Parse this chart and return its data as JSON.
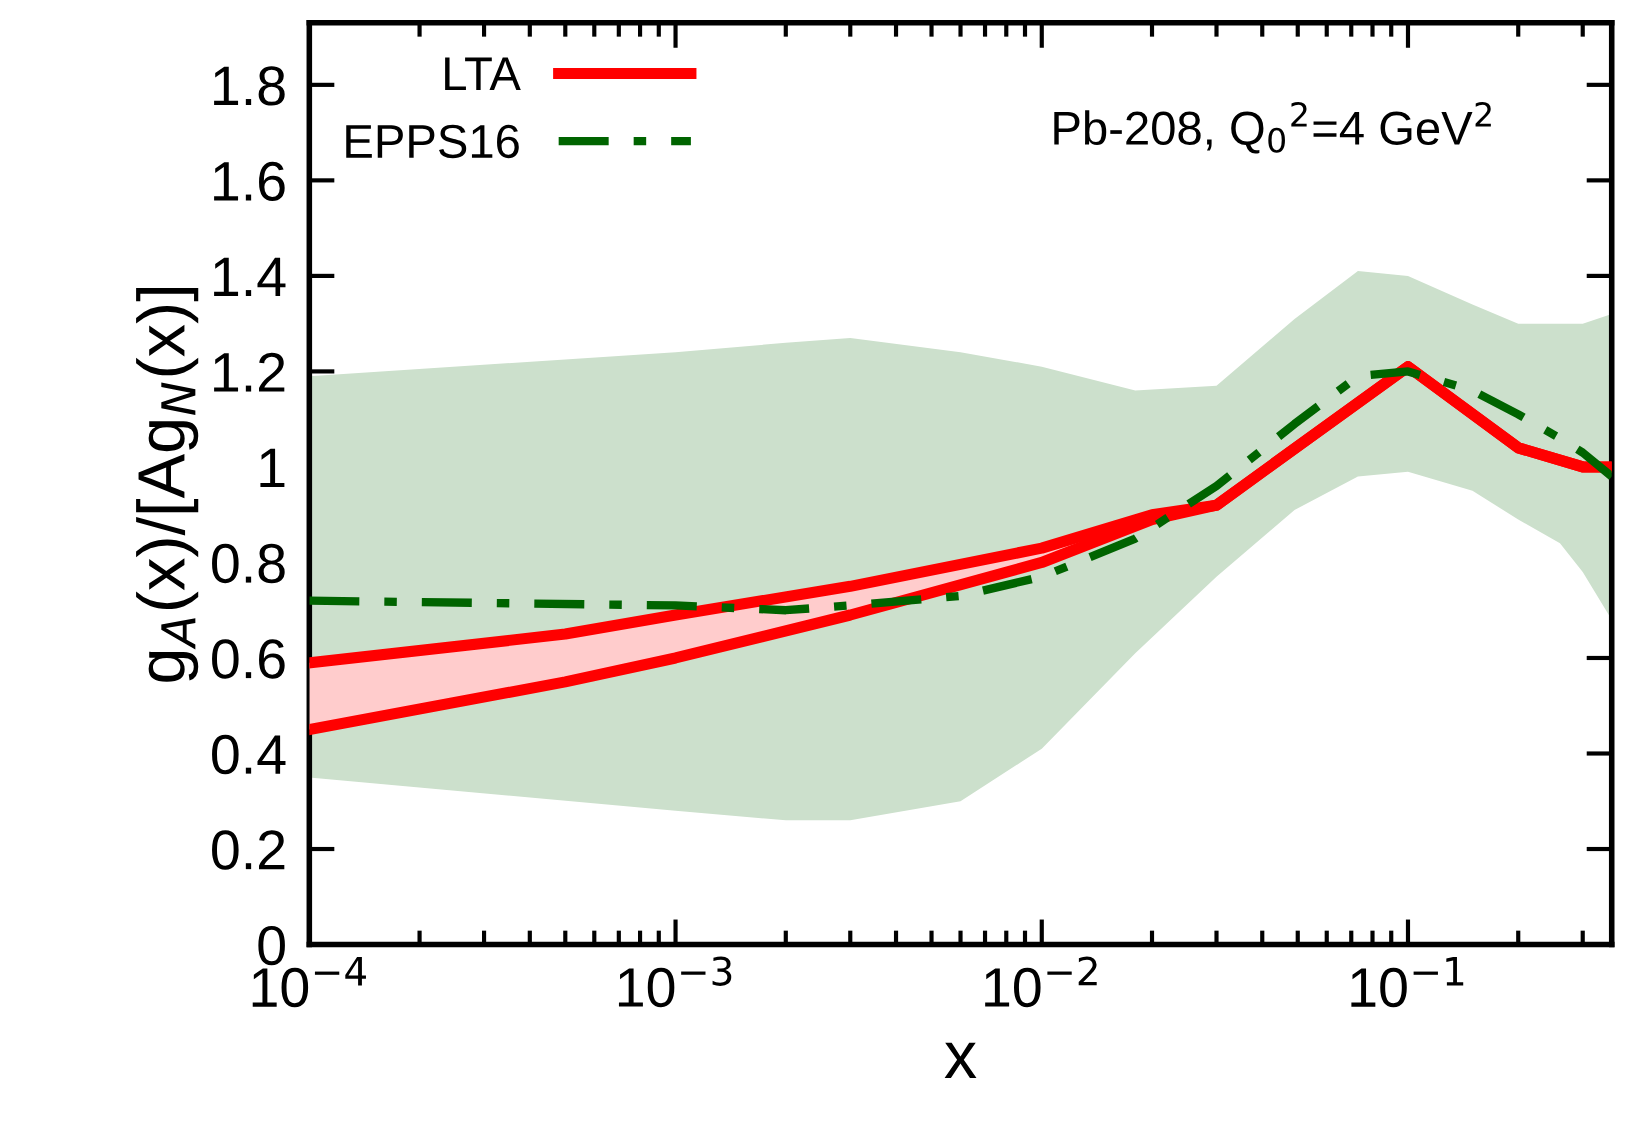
{
  "chart_data": {
    "type": "line",
    "xlabel": "x",
    "ylabel": "g$_{A}$(x)/[Ag$_{N}$(x)]",
    "annotations": [
      "Pb-208, Q$_{0}$$^{2}$=4 GeV$^{2}$"
    ],
    "log": "x",
    "xlim": [
      0.0001,
      0.36
    ],
    "ylim": [
      0,
      1.93
    ],
    "xticks": [
      {
        "value": 0.0001,
        "label": "10$^{−4}$"
      },
      {
        "value": 0.001,
        "label": "10$^{−3}$"
      },
      {
        "value": 0.01,
        "label": "10$^{−2}$"
      },
      {
        "value": 0.1,
        "label": "10$^{−1}$"
      }
    ],
    "yticks": [
      0,
      0.2,
      0.4,
      0.6,
      0.8,
      1,
      1.2,
      1.4,
      1.6,
      1.8
    ],
    "grid": false,
    "legend": "top left",
    "series": [
      {
        "name": "LTA",
        "color": "#ff0000",
        "line_style": "solid",
        "x": [
          0.0001,
          0.0005,
          0.001,
          0.003,
          0.01,
          0.02,
          0.03,
          0.1,
          0.2,
          0.3,
          0.36
        ],
        "values": [
          0.59,
          0.65,
          0.69,
          0.75,
          0.83,
          0.9,
          0.92,
          1.21,
          1.04,
          1.0,
          1.0
        ],
        "upper": [
          0.59,
          0.65,
          0.69,
          0.75,
          0.83,
          0.9,
          0.92,
          1.21,
          1.04,
          1.0,
          1.0
        ],
        "lower": [
          0.45,
          0.55,
          0.6,
          0.69,
          0.8,
          0.89,
          0.92,
          1.21,
          1.04,
          1.0,
          1.0
        ]
      },
      {
        "color": "#ff0000",
        "line_style": "solid",
        "x": [
          0.0001,
          0.0005,
          0.001,
          0.003,
          0.01,
          0.02,
          0.03,
          0.1,
          0.2,
          0.3,
          0.36
        ],
        "values": [
          0.45,
          0.55,
          0.6,
          0.69,
          0.8,
          0.89,
          0.92,
          1.21,
          1.04,
          1.0,
          1.0
        ]
      },
      {
        "name": "EPPS16",
        "color": "#006400",
        "line_style": "dashdot",
        "x": [
          0.0001,
          0.001,
          0.002,
          0.003,
          0.006,
          0.01,
          0.018,
          0.03,
          0.049,
          0.073,
          0.1,
          0.15,
          0.2,
          0.26,
          0.3,
          0.36
        ],
        "values": [
          0.72,
          0.71,
          0.7,
          0.71,
          0.73,
          0.77,
          0.85,
          0.96,
          1.09,
          1.19,
          1.2,
          1.16,
          1.11,
          1.06,
          1.03,
          0.98
        ],
        "upper": [
          1.19,
          1.24,
          1.26,
          1.27,
          1.24,
          1.21,
          1.16,
          1.17,
          1.31,
          1.41,
          1.4,
          1.34,
          1.3,
          1.3,
          1.3,
          1.32
        ],
        "lower": [
          0.35,
          0.28,
          0.26,
          0.26,
          0.3,
          0.41,
          0.61,
          0.77,
          0.91,
          0.98,
          0.99,
          0.95,
          0.89,
          0.84,
          0.78,
          0.68
        ]
      }
    ]
  }
}
